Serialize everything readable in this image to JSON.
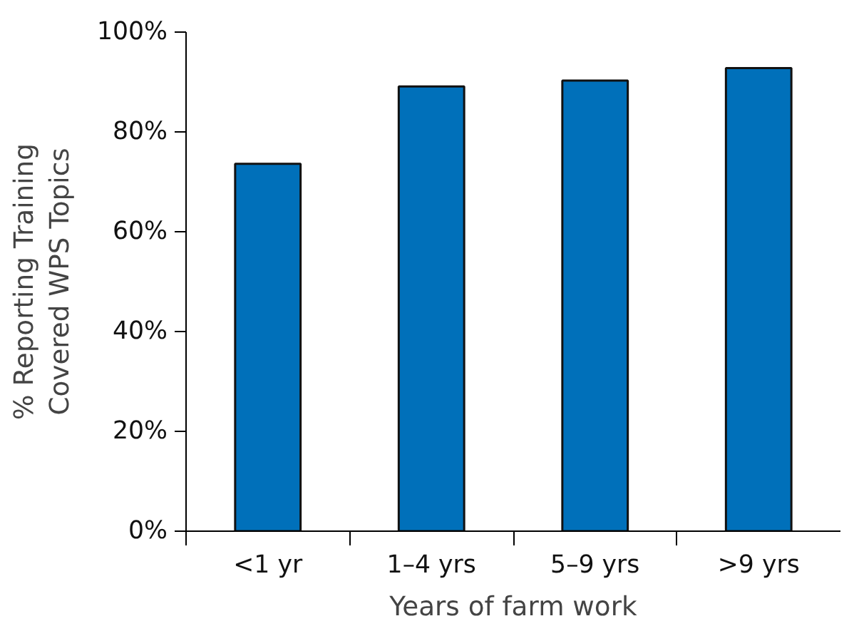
{
  "chart_data": {
    "type": "bar",
    "ylabel": "% Reporting Training\nCovered WPS Topics",
    "xlabel": "Years of farm work",
    "categories": [
      "<1 yr",
      "1–4 yrs",
      "5–9 yrs",
      ">9 yrs"
    ],
    "values": [
      73.6,
      89.1,
      90.3,
      92.8
    ],
    "color": "#0070ba",
    "ylim": [
      0,
      100
    ],
    "yticks": [
      {
        "value": 0,
        "label": "0%"
      },
      {
        "value": 20,
        "label": "20%"
      },
      {
        "value": 40,
        "label": "40%"
      },
      {
        "value": 60,
        "label": "60%"
      },
      {
        "value": 80,
        "label": "80%"
      },
      {
        "value": 100,
        "label": "100%"
      }
    ],
    "grid": false
  }
}
